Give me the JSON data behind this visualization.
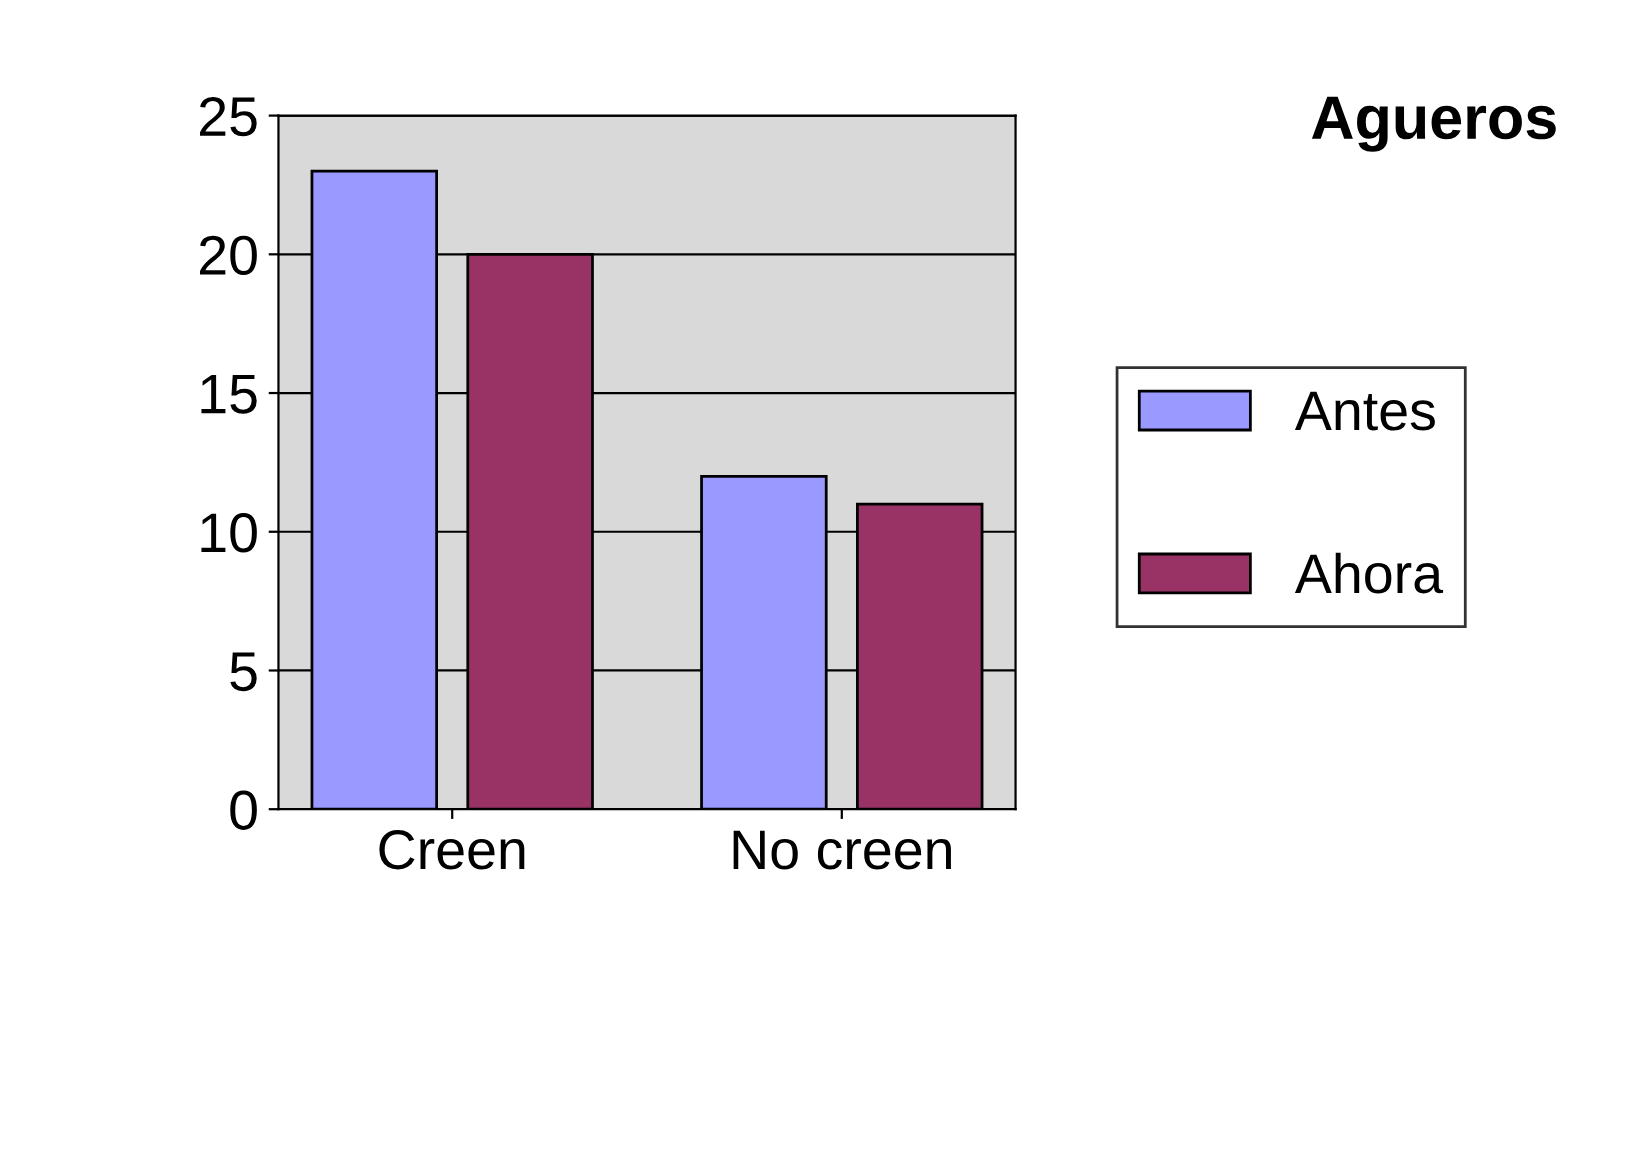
{
  "chart_data": {
    "type": "bar",
    "title": "Agueros",
    "categories": [
      "Creen",
      "No creen"
    ],
    "series": [
      {
        "name": "Antes",
        "color": "#9999ff",
        "values": [
          23,
          12
        ]
      },
      {
        "name": "Ahora",
        "color": "#993366",
        "values": [
          20,
          11
        ]
      }
    ],
    "ylim": [
      0,
      25
    ],
    "yticks": [
      0,
      5,
      10,
      15,
      20,
      25
    ],
    "grid": "y",
    "legend": "right"
  }
}
